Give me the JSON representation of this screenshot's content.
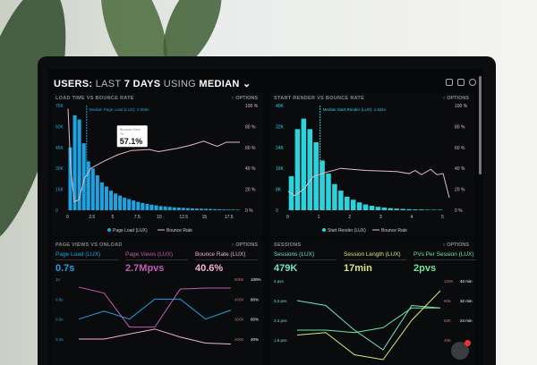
{
  "header": {
    "title_bold1": "USERS:",
    "title_light1": "LAST",
    "title_bold2": "7 DAYS",
    "title_light2": "USING",
    "title_bold3": "MEDIAN"
  },
  "options_label": "OPTIONS",
  "panels": {
    "load": {
      "title": "LOAD TIME VS BOUNCE RATE",
      "median_label": "Median Page Load (LUX): 2.056s",
      "tooltip_title": "Bounce Rate",
      "tooltip_sub": "7s",
      "tooltip_value": "57.1%",
      "legend": [
        "Page Load (LUX)",
        "Bounce Rate"
      ]
    },
    "render": {
      "title": "START RENDER VS BOUNCE RATE",
      "median_label": "Median Start Render (LUX): 1.031s",
      "legend": [
        "Start Render (LUX)",
        "Bounce Rate"
      ]
    },
    "pageviews": {
      "title": "PAGE VIEWS VS ONLOAD",
      "kpis": [
        {
          "label": "Page Load (LUX)",
          "value": "0.7s",
          "color": "#1fa3e0"
        },
        {
          "label": "Page Views (LUX)",
          "value": "2.7Mpvs",
          "color": "#c35bb0"
        },
        {
          "label": "Bounce Rate (LUX)",
          "value": "40.6%",
          "color": "#f4b3cc"
        }
      ]
    },
    "sessions": {
      "title": "SESSIONS",
      "kpis": [
        {
          "label": "Sessions (LUX)",
          "value": "479K",
          "color": "#6ee6c4"
        },
        {
          "label": "Session Length (LUX)",
          "value": "17min",
          "color": "#d8e87a"
        },
        {
          "label": "PVs Per Session (LUX)",
          "value": "2pvs",
          "color": "#6ee6a0"
        }
      ],
      "chat_badge": "6"
    }
  },
  "chart_data": [
    {
      "type": "bar",
      "name": "load",
      "xlabels": [
        "0",
        "2.5",
        "5",
        "7.5",
        "10",
        "12.5",
        "15",
        "17.5"
      ],
      "xmax": 19,
      "step": 0.5,
      "ylabels": [
        "0",
        "15K",
        "30K",
        "45K",
        "60K",
        "75K"
      ],
      "ymax": 75,
      "y2labels": [
        "0 %",
        "20 %",
        "40 %",
        "60 %",
        "80 %",
        "100 %"
      ],
      "median": 2.056,
      "color": "#1fa3e0",
      "line_color": "#e8b8c8",
      "values": [
        45,
        68,
        65,
        48,
        35,
        30,
        25,
        20,
        17,
        14,
        12,
        10.5,
        9,
        8,
        7,
        6,
        5.2,
        4.6,
        4,
        3.5,
        3,
        2.7,
        2.4,
        2.1,
        1.9,
        1.7,
        1.5,
        1.3,
        1.2,
        1.1,
        1,
        0.9,
        0.8,
        0.7,
        0.6,
        0.5,
        0.5,
        0.4
      ],
      "line": [
        [
          0,
          97
        ],
        [
          0.3,
          40
        ],
        [
          0.7,
          8
        ],
        [
          1.2,
          10
        ],
        [
          1.8,
          30
        ],
        [
          2.5,
          40
        ],
        [
          4,
          47
        ],
        [
          5.5,
          53
        ],
        [
          7,
          57.1
        ],
        [
          9,
          58
        ],
        [
          10,
          56
        ],
        [
          12,
          59
        ],
        [
          13.5,
          62
        ],
        [
          15,
          66
        ],
        [
          16.5,
          61
        ],
        [
          17.5,
          65
        ],
        [
          19,
          65
        ]
      ]
    },
    {
      "type": "bar",
      "name": "render",
      "xlabels": [
        "0",
        "1",
        "2",
        "3",
        "4",
        "5"
      ],
      "xmax": 5.2,
      "step": 0.2,
      "ylabels": [
        "0",
        "8K",
        "16K",
        "24K",
        "32K",
        "40K"
      ],
      "ymax": 40,
      "y2labels": [
        "0 %",
        "20 %",
        "40 %",
        "60 %",
        "80 %",
        "100 %"
      ],
      "median": 1.031,
      "color": "#2cd3dc",
      "line_color": "#e8b8c8",
      "values": [
        13,
        31,
        35,
        31,
        26,
        19,
        14,
        10,
        7.5,
        5.2,
        4,
        3,
        2.2,
        1.7,
        1.3,
        1,
        0.8,
        0.6,
        0.5,
        0.4,
        0.3,
        0.3,
        0.2,
        0.2,
        0.2
      ],
      "line": [
        [
          0,
          18
        ],
        [
          0.2,
          14
        ],
        [
          0.5,
          20
        ],
        [
          0.8,
          32
        ],
        [
          1.2,
          36
        ],
        [
          1.7,
          40
        ],
        [
          2.5,
          38
        ],
        [
          3.5,
          37
        ],
        [
          3.9,
          35
        ],
        [
          4.1,
          38
        ],
        [
          4.3,
          34
        ],
        [
          4.6,
          39
        ],
        [
          4.8,
          34
        ],
        [
          5,
          35
        ],
        [
          5.2,
          12
        ]
      ]
    },
    {
      "type": "line",
      "name": "pageviews",
      "ylabels": [
        "0.4s",
        "0.6s",
        "0.8s",
        "1s"
      ],
      "y2labels": [
        "200K",
        "300K",
        "400K",
        "500K"
      ],
      "y3labels": [
        "40%",
        "60%",
        "80%",
        "100%"
      ],
      "series": [
        {
          "color": "#1fa3e0",
          "values": [
            0.6,
            0.68,
            0.6,
            0.8,
            0.8,
            0.6,
            0.69
          ]
        },
        {
          "color": "#c35bb0",
          "values": [
            0.92,
            0.86,
            0.52,
            0.52,
            0.9,
            0.91,
            0.91
          ]
        },
        {
          "color": "#f4b3cc",
          "values": [
            0.4,
            0.4,
            0.45,
            0.5,
            0.42,
            0.36,
            0.35
          ]
        }
      ]
    },
    {
      "type": "line",
      "name": "sessions",
      "ylabels": [
        "1.6 pvs",
        "2.4 pvs",
        "3.2 pvs",
        "4 pvs"
      ],
      "y2labels": [
        "40K",
        "60K",
        "80K",
        "100K"
      ],
      "y3labels": [
        "24 min",
        "32 min",
        "40 min"
      ],
      "series": [
        {
          "color": "#6ee6c4",
          "values": [
            3.2,
            3.0,
            2.0,
            1.2,
            3.0,
            2.9
          ]
        },
        {
          "color": "#6ee6a0",
          "values": [
            2.0,
            2.0,
            1.9,
            2.1,
            2.9,
            2.9
          ]
        },
        {
          "color": "#d8e87a",
          "values": [
            1.8,
            1.9,
            1.0,
            0.8,
            2.4,
            3.6
          ]
        }
      ]
    }
  ]
}
